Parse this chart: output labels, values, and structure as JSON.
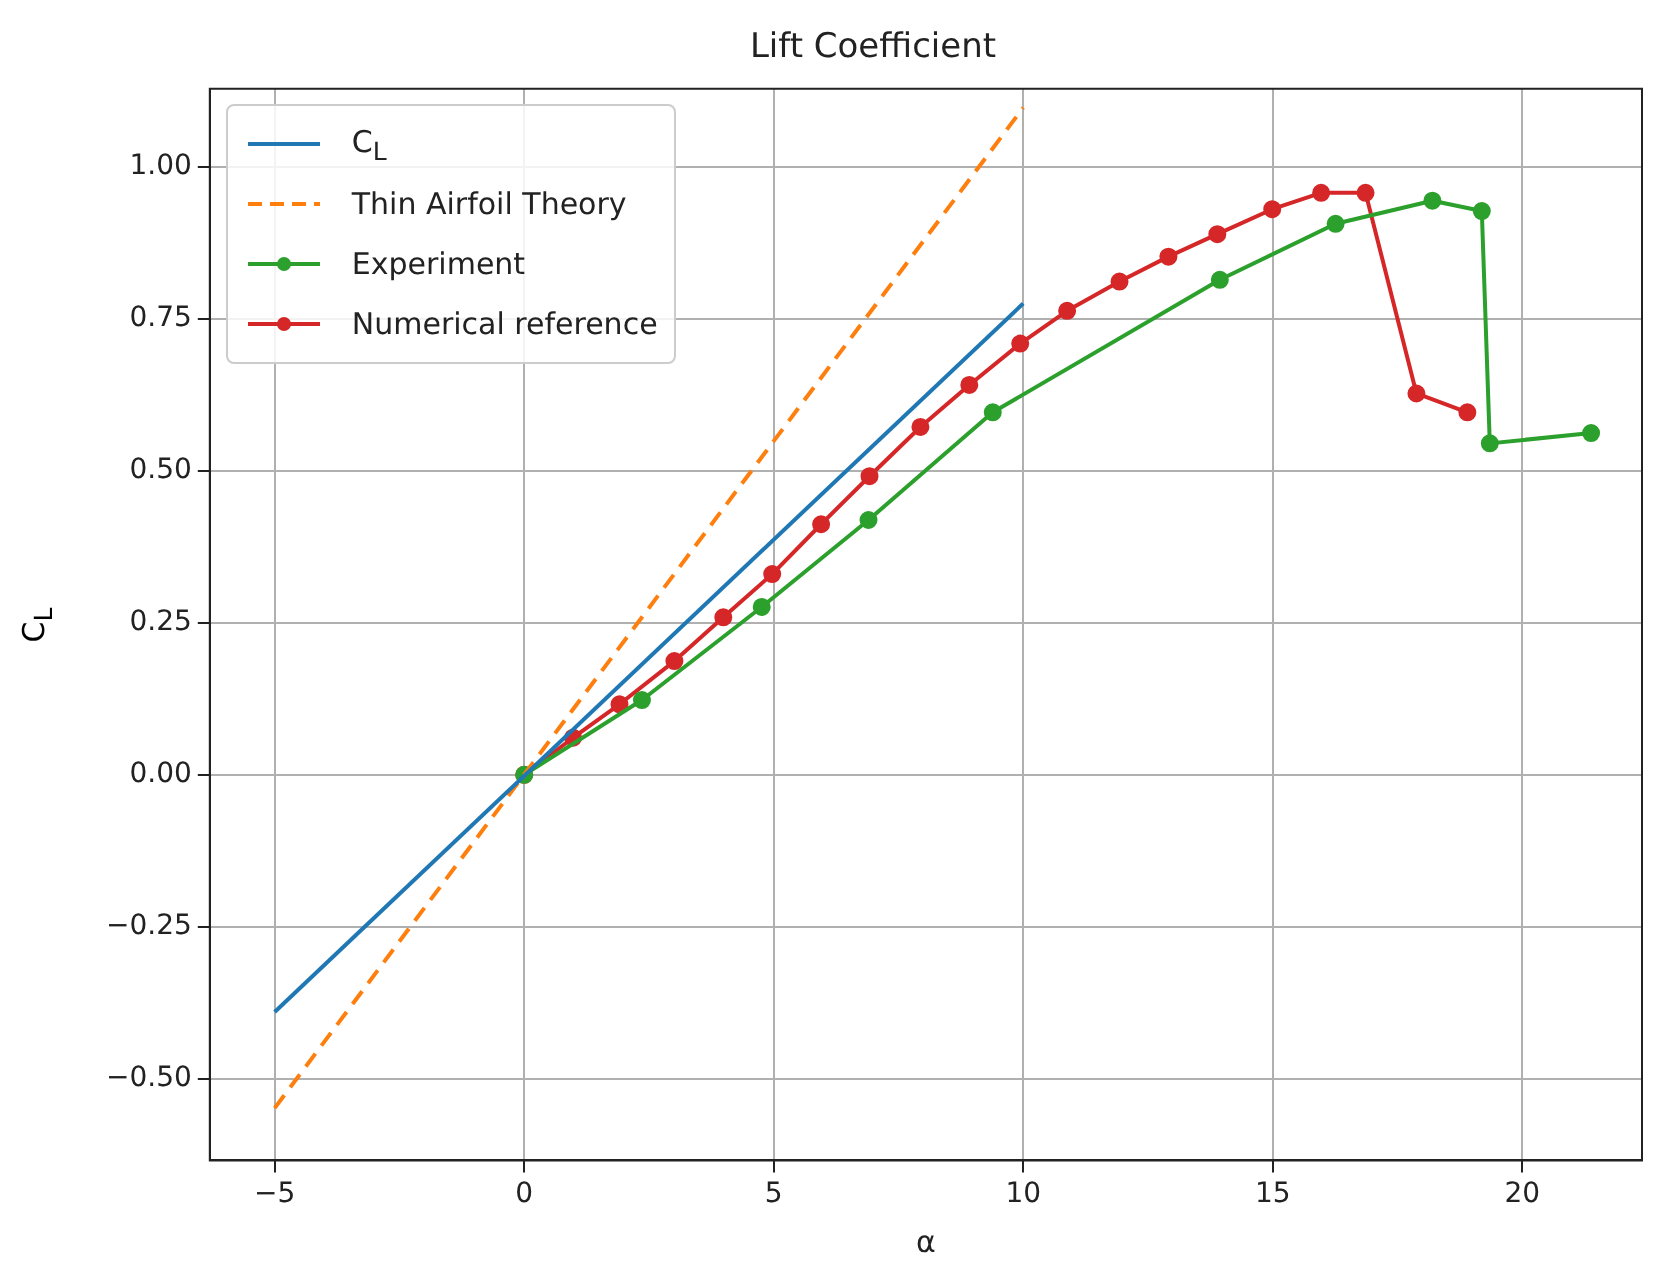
{
  "chart_data": {
    "type": "line",
    "title": "Lift Coefficient",
    "xlabel": "α",
    "ylabel": "C$_{L}$",
    "xlim": [
      -6.3,
      22.4
    ],
    "ylim": [
      -0.634,
      1.128
    ],
    "xticks": [
      {
        "value": -5,
        "label": "−5"
      },
      0,
      5,
      10,
      15,
      20
    ],
    "yticks": [
      {
        "value": -0.5,
        "label": "−0.50"
      },
      {
        "value": -0.25,
        "label": "−0.25"
      },
      {
        "value": 0,
        "label": "0.00"
      },
      {
        "value": 0.25,
        "label": "0.25"
      },
      {
        "value": 0.5,
        "label": "0.50"
      },
      {
        "value": 0.75,
        "label": "0.75"
      },
      {
        "value": 1,
        "label": "1.00"
      }
    ],
    "grid": true,
    "legend": "top left",
    "series": [
      {
        "name": "C$_{L}$",
        "color": "#1f77b4",
        "x": [
          -5,
          10
        ],
        "values": [
          -0.39,
          0.775
        ],
        "marker": "none",
        "line_style": "solid"
      },
      {
        "name": "Thin Airfoil Theory",
        "color": "#ff7f0e",
        "x": [
          -5,
          10
        ],
        "values": [
          -0.548,
          1.097
        ],
        "marker": "none",
        "line_style": "dashed"
      },
      {
        "name": "Experiment",
        "color": "#2ca02c",
        "x": [
          0,
          2.36,
          4.76,
          6.9,
          9.39,
          13.94,
          16.26,
          18.2,
          19.19,
          19.35,
          21.38
        ],
        "values": [
          0,
          0.123,
          0.276,
          0.419,
          0.596,
          0.814,
          0.906,
          0.944,
          0.927,
          0.545,
          0.562
        ],
        "marker": "circle",
        "line_style": "solid"
      },
      {
        "name": "Numerical reference",
        "color": "#d62728",
        "x": [
          0,
          0.98,
          1.91,
          3.01,
          3.99,
          4.97,
          5.95,
          6.92,
          7.94,
          8.92,
          9.94,
          10.88,
          11.93,
          12.91,
          13.89,
          14.99,
          15.97,
          16.86,
          17.88,
          18.9
        ],
        "values": [
          0,
          0.061,
          0.116,
          0.187,
          0.259,
          0.33,
          0.412,
          0.491,
          0.572,
          0.641,
          0.709,
          0.763,
          0.811,
          0.852,
          0.889,
          0.93,
          0.957,
          0.957,
          0.627,
          0.596
        ],
        "marker": "circle",
        "line_style": "solid"
      }
    ]
  }
}
